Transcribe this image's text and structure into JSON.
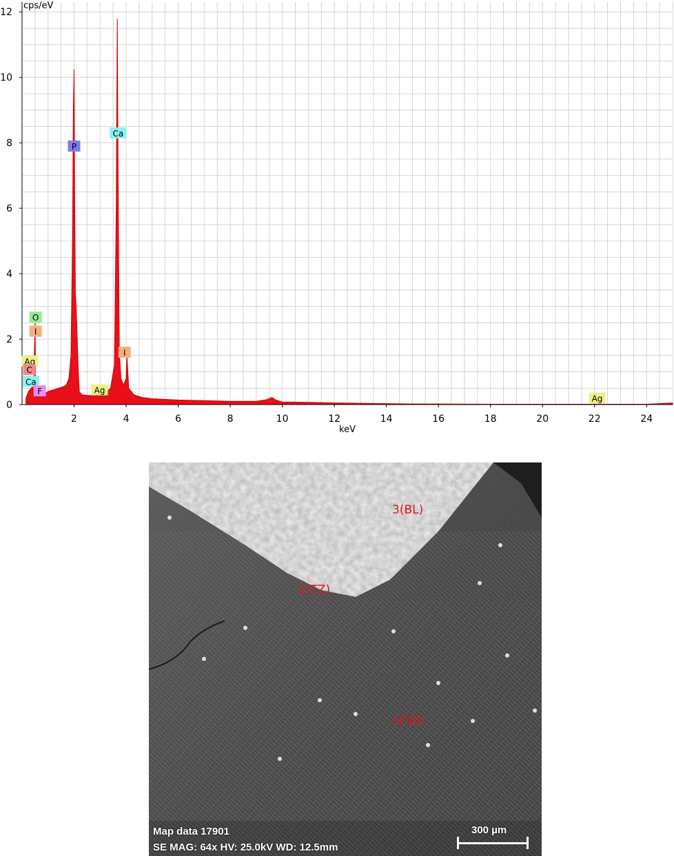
{
  "chart_data": {
    "type": "area",
    "xlabel": "keV",
    "ylabel": "cps/eV",
    "xlim": [
      0,
      25
    ],
    "ylim": [
      0,
      12.3
    ],
    "xticks": [
      "2",
      "4",
      "6",
      "8",
      "10",
      "12",
      "14",
      "16",
      "18",
      "20",
      "22",
      "24"
    ],
    "yticks": [
      "0",
      "2",
      "4",
      "6",
      "8",
      "10",
      "12"
    ],
    "grid": true,
    "fill_color": "#e8101a",
    "x": [
      0.15,
      0.25,
      0.35,
      0.45,
      0.5,
      0.52,
      0.55,
      0.6,
      0.7,
      0.8,
      0.9,
      1.0,
      1.2,
      1.4,
      1.6,
      1.7,
      1.8,
      1.88,
      1.94,
      1.97,
      2.0,
      2.02,
      2.05,
      2.08,
      2.12,
      2.16,
      2.2,
      2.3,
      2.5,
      2.8,
      3.0,
      3.2,
      3.4,
      3.55,
      3.62,
      3.66,
      3.69,
      3.72,
      3.74,
      3.8,
      3.9,
      4.0,
      4.03,
      4.1,
      4.3,
      4.6,
      5.0,
      6.0,
      7.0,
      8.0,
      9.0,
      9.4,
      9.6,
      9.75,
      10.0,
      11.0,
      12.0,
      13.0,
      14.0,
      15.0,
      16.0,
      18.0,
      20.0,
      22.0,
      24.0,
      25.0
    ],
    "y": [
      0.2,
      0.4,
      0.5,
      0.6,
      2.6,
      0.9,
      0.5,
      0.35,
      0.3,
      0.3,
      0.35,
      0.4,
      0.45,
      0.5,
      0.55,
      0.6,
      0.8,
      1.5,
      5.2,
      9.0,
      10.25,
      6.5,
      3.4,
      3.0,
      2.0,
      1.0,
      0.4,
      0.3,
      0.28,
      0.27,
      0.3,
      0.35,
      0.5,
      1.2,
      6.0,
      11.8,
      7.2,
      3.5,
      1.6,
      0.8,
      0.6,
      0.8,
      1.5,
      0.5,
      0.3,
      0.22,
      0.18,
      0.14,
      0.12,
      0.1,
      0.1,
      0.15,
      0.22,
      0.14,
      0.08,
      0.07,
      0.05,
      0.04,
      0.03,
      0.02,
      0.02,
      0.01,
      0.01,
      0.01,
      0.01,
      0.05
    ],
    "element_labels": [
      {
        "text": "P",
        "energy": 2.0,
        "cps": 7.9,
        "color": "#7b7be8"
      },
      {
        "text": "Ca",
        "energy": 3.69,
        "cps": 8.3,
        "color": "#8ef0f0"
      },
      {
        "text": "O",
        "energy": 0.52,
        "cps": 2.67,
        "color": "#90ee90"
      },
      {
        "text": "I",
        "energy": 0.52,
        "cps": 2.24,
        "color": "#f4b07c"
      },
      {
        "text": "Ag",
        "energy": 0.3,
        "cps": 1.33,
        "color": "#f0f08a"
      },
      {
        "text": "C",
        "energy": 0.28,
        "cps": 1.07,
        "color": "#f08a8a"
      },
      {
        "text": "Ca",
        "energy": 0.34,
        "cps": 0.71,
        "color": "#8ef0f0"
      },
      {
        "text": "F",
        "energy": 0.68,
        "cps": 0.42,
        "color": "#f08af0"
      },
      {
        "text": "Ag",
        "energy": 2.98,
        "cps": 0.45,
        "color": "#f0f08a"
      },
      {
        "text": "I",
        "energy": 3.94,
        "cps": 1.6,
        "color": "#f4b07c"
      },
      {
        "text": "Ag",
        "energy": 22.1,
        "cps": 0.2,
        "color": "#f0f08a"
      }
    ]
  },
  "sem_image": {
    "region_labels": [
      {
        "text": "3(BL)"
      },
      {
        "text": "2(TZ)"
      },
      {
        "text": "1(SD)"
      }
    ],
    "caption_line1": "Map data 17901",
    "caption_line2": "SE  MAG: 64x  HV: 25.0kV  WD: 12.5mm",
    "scale_bar_label": "300 µm"
  }
}
